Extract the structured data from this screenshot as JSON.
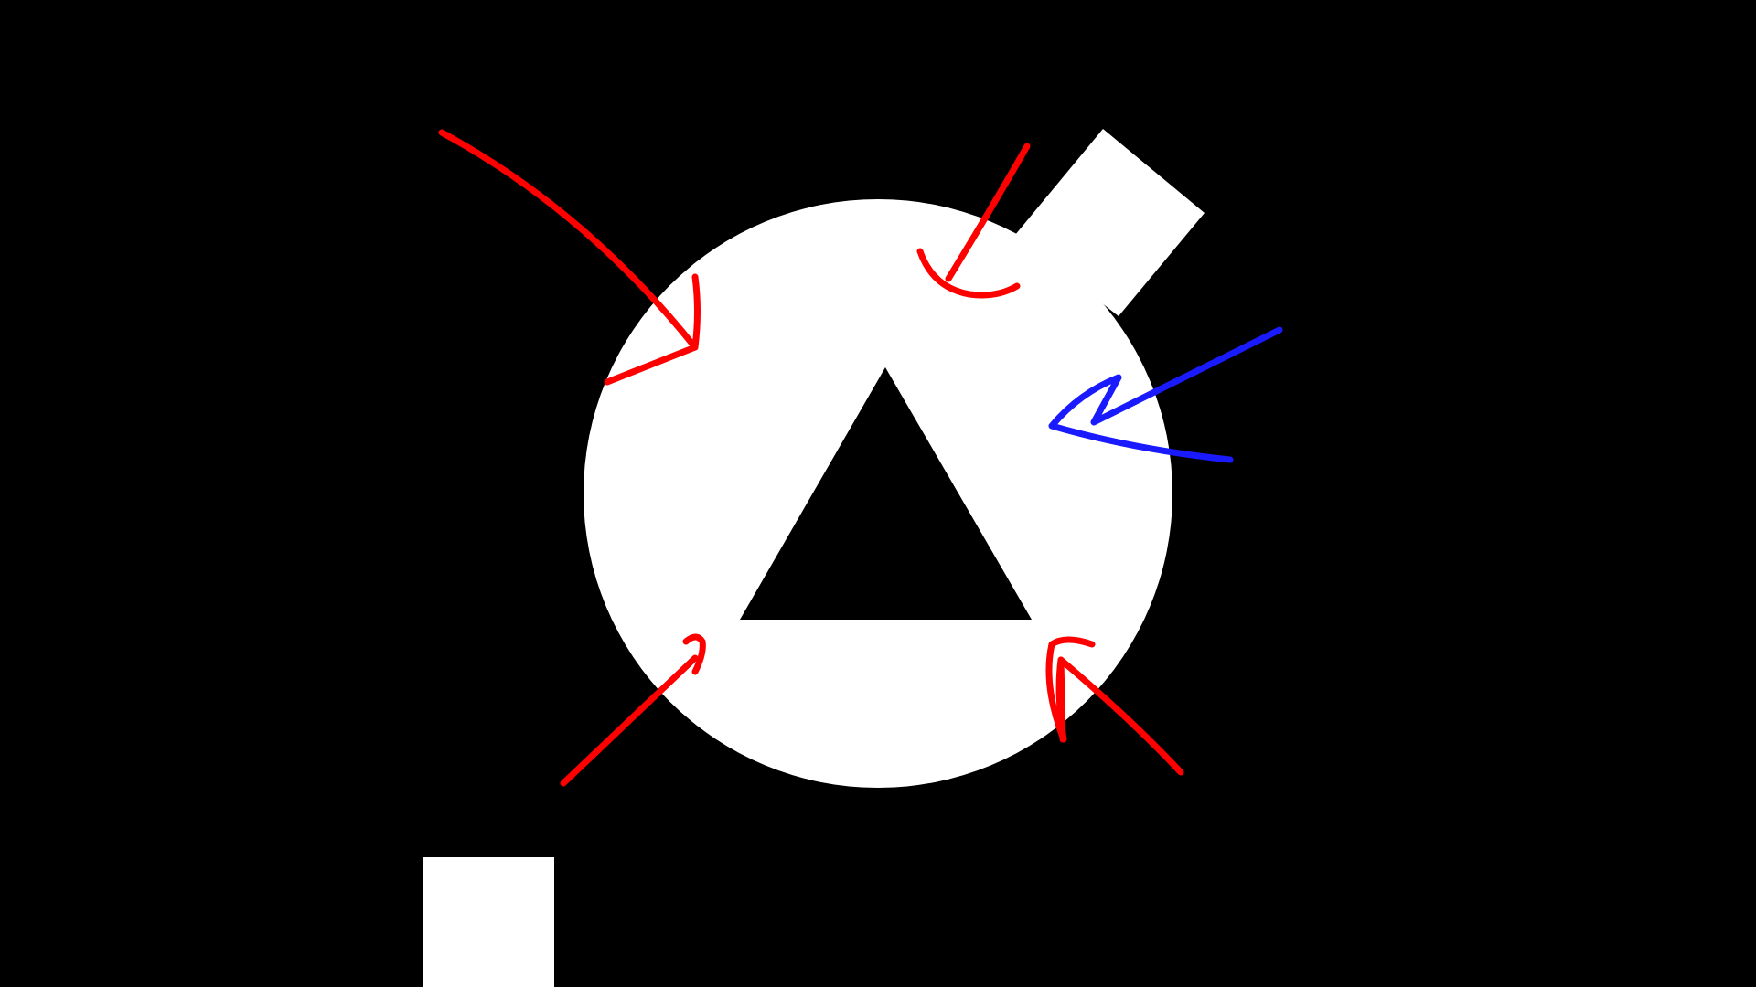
{
  "scene": {
    "background_color": "#000000",
    "player": {
      "shape": "circle",
      "color": "#ffffff",
      "emblem": {
        "shape": "triangle",
        "color": "#000000"
      }
    },
    "attachment": {
      "shape": "rectangle",
      "color": "#ffffff"
    },
    "block": {
      "shape": "square",
      "color": "#ffffff"
    },
    "arrows": [
      {
        "id": "arrow-top-left",
        "color": "#ff0000",
        "direction": "inward"
      },
      {
        "id": "arrow-top",
        "color": "#ff0000",
        "direction": "inward"
      },
      {
        "id": "arrow-right",
        "color": "#1a1aff",
        "direction": "inward"
      },
      {
        "id": "arrow-bottom-left",
        "color": "#ff0000",
        "direction": "inward"
      },
      {
        "id": "arrow-bottom-right",
        "color": "#ff0000",
        "direction": "inward"
      }
    ]
  }
}
